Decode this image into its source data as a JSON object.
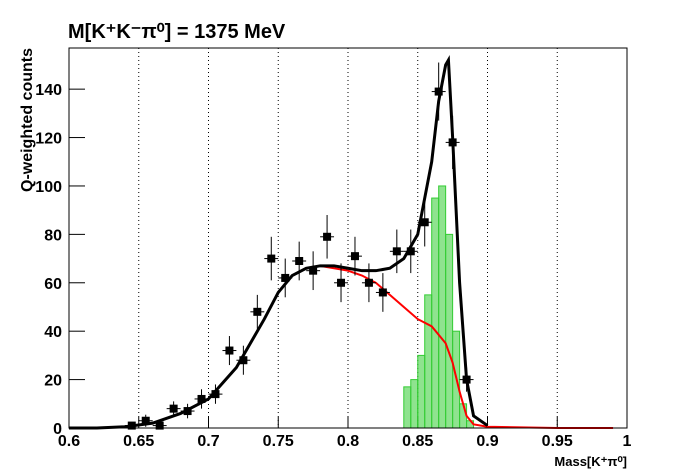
{
  "chart_data": {
    "type": "scatter",
    "title": "M[K⁺K⁻π⁰] = 1375 MeV",
    "x_label": "Mass[K⁺π⁰]",
    "y_label": "Q-weighted counts",
    "xlim": [
      0.6,
      1
    ],
    "ylim": [
      0,
      157
    ],
    "xticks": [
      0.6,
      0.65,
      0.7,
      0.75,
      0.8,
      0.85,
      0.9,
      0.95,
      1
    ],
    "yticks": [
      0,
      20,
      40,
      60,
      80,
      100,
      120,
      140
    ],
    "grid": "x",
    "histogram": {
      "color": "#33cc33",
      "bins": [
        0.84,
        0.845,
        0.85,
        0.855,
        0.86,
        0.865,
        0.87,
        0.875,
        0.88,
        0.885,
        0.89
      ],
      "counts": [
        17,
        20,
        30,
        55,
        95,
        100,
        80,
        40,
        10,
        3
      ]
    },
    "series": [
      {
        "type": "line",
        "color": "#ff0000",
        "x": [
          0.6,
          0.62,
          0.64,
          0.66,
          0.68,
          0.7,
          0.72,
          0.74,
          0.75,
          0.76,
          0.77,
          0.78,
          0.79,
          0.8,
          0.81,
          0.82,
          0.83,
          0.84,
          0.85,
          0.86,
          0.87,
          0.875,
          0.88,
          0.885,
          0.89,
          0.9,
          0.95,
          0.99
        ],
        "values": [
          0,
          0,
          0.5,
          2,
          6,
          12,
          25,
          45,
          56,
          63,
          66,
          67,
          66,
          65,
          63,
          60,
          55,
          50,
          45,
          42,
          35,
          27,
          15,
          5,
          1.5,
          0.5,
          0,
          0
        ]
      },
      {
        "type": "line",
        "color": "#000000",
        "x": [
          0.6,
          0.62,
          0.64,
          0.66,
          0.68,
          0.7,
          0.72,
          0.74,
          0.75,
          0.76,
          0.77,
          0.78,
          0.79,
          0.8,
          0.81,
          0.82,
          0.83,
          0.84,
          0.85,
          0.86,
          0.865,
          0.87,
          0.872,
          0.875,
          0.88,
          0.885,
          0.89,
          0.9
        ],
        "values": [
          0,
          0,
          0.5,
          2,
          6,
          12,
          25,
          45,
          56,
          63,
          66,
          67,
          67,
          66,
          65,
          65,
          66,
          70,
          80,
          110,
          135,
          150,
          152,
          120,
          60,
          20,
          5,
          1
        ]
      },
      {
        "type": "errorbar",
        "color": "#000000",
        "xerr": 0.005,
        "x": [
          0.645,
          0.655,
          0.665,
          0.675,
          0.685,
          0.695,
          0.705,
          0.715,
          0.725,
          0.735,
          0.745,
          0.755,
          0.765,
          0.775,
          0.785,
          0.795,
          0.805,
          0.815,
          0.825,
          0.835,
          0.845,
          0.855,
          0.865,
          0.875,
          0.885
        ],
        "values": [
          1,
          3,
          1,
          8,
          7,
          12,
          14,
          32,
          28,
          48,
          70,
          62,
          69,
          65,
          79,
          60,
          71,
          60,
          56,
          73,
          73,
          85,
          139,
          118,
          20
        ],
        "errors": [
          1.5,
          2.5,
          1.5,
          3,
          3,
          4,
          4,
          6,
          6,
          7,
          9,
          8,
          8,
          8,
          9,
          8,
          8,
          8,
          8,
          9,
          9,
          10,
          12,
          11,
          5
        ]
      }
    ]
  }
}
